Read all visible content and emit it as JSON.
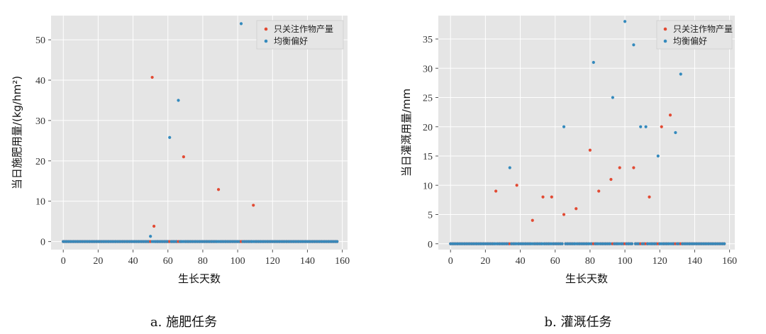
{
  "chart_data": [
    {
      "type": "scatter",
      "caption": "a. 施肥任务",
      "xlabel": "生长天数",
      "ylabel": "当日施肥用量/(kg/hm²)",
      "xlim": [
        -7,
        163
      ],
      "ylim": [
        -2,
        56
      ],
      "xticks": [
        0,
        20,
        40,
        60,
        80,
        100,
        120,
        140,
        160
      ],
      "yticks": [
        0,
        10,
        20,
        30,
        40,
        50
      ],
      "grid": true,
      "legend_position": "top-right",
      "x_range_days": [
        0,
        157
      ],
      "series": [
        {
          "name": "只关注作物产量",
          "color": "#e24a33",
          "points": [
            [
              51,
              40.7
            ],
            [
              52,
              3.8
            ],
            [
              69,
              21.0
            ],
            [
              89,
              12.9
            ],
            [
              109,
              9.0
            ]
          ]
        },
        {
          "name": "均衡偏好",
          "color": "#348abd",
          "points": [
            [
              50,
              1.3
            ],
            [
              61,
              25.8
            ],
            [
              66,
              35.0
            ],
            [
              102,
              54.0
            ]
          ]
        }
      ]
    },
    {
      "type": "scatter",
      "caption": "b. 灌溉任务",
      "xlabel": "生长天数",
      "ylabel": "当日灌溉用量/mm",
      "xlim": [
        -7,
        163
      ],
      "ylim": [
        -1,
        39
      ],
      "xticks": [
        0,
        20,
        40,
        60,
        80,
        100,
        120,
        140,
        160
      ],
      "yticks": [
        0,
        5,
        10,
        15,
        20,
        25,
        30,
        35
      ],
      "grid": true,
      "legend_position": "top-right",
      "x_range_days": [
        0,
        157
      ],
      "series": [
        {
          "name": "只关注作物产量",
          "color": "#e24a33",
          "points": [
            [
              26,
              9
            ],
            [
              38,
              10
            ],
            [
              47,
              4
            ],
            [
              53,
              8
            ],
            [
              58,
              8
            ],
            [
              65,
              5
            ],
            [
              72,
              6
            ],
            [
              80,
              16
            ],
            [
              85,
              9
            ],
            [
              92,
              11
            ],
            [
              97,
              13
            ],
            [
              105,
              13
            ],
            [
              114,
              8
            ],
            [
              121,
              20
            ],
            [
              126,
              22
            ]
          ]
        },
        {
          "name": "均衡偏好",
          "color": "#348abd",
          "points": [
            [
              34,
              13
            ],
            [
              65,
              20
            ],
            [
              82,
              31
            ],
            [
              93,
              25
            ],
            [
              100,
              38
            ],
            [
              105,
              34
            ],
            [
              109,
              20
            ],
            [
              112,
              20
            ],
            [
              119,
              15
            ],
            [
              129,
              19
            ],
            [
              132,
              29
            ]
          ]
        }
      ]
    }
  ]
}
